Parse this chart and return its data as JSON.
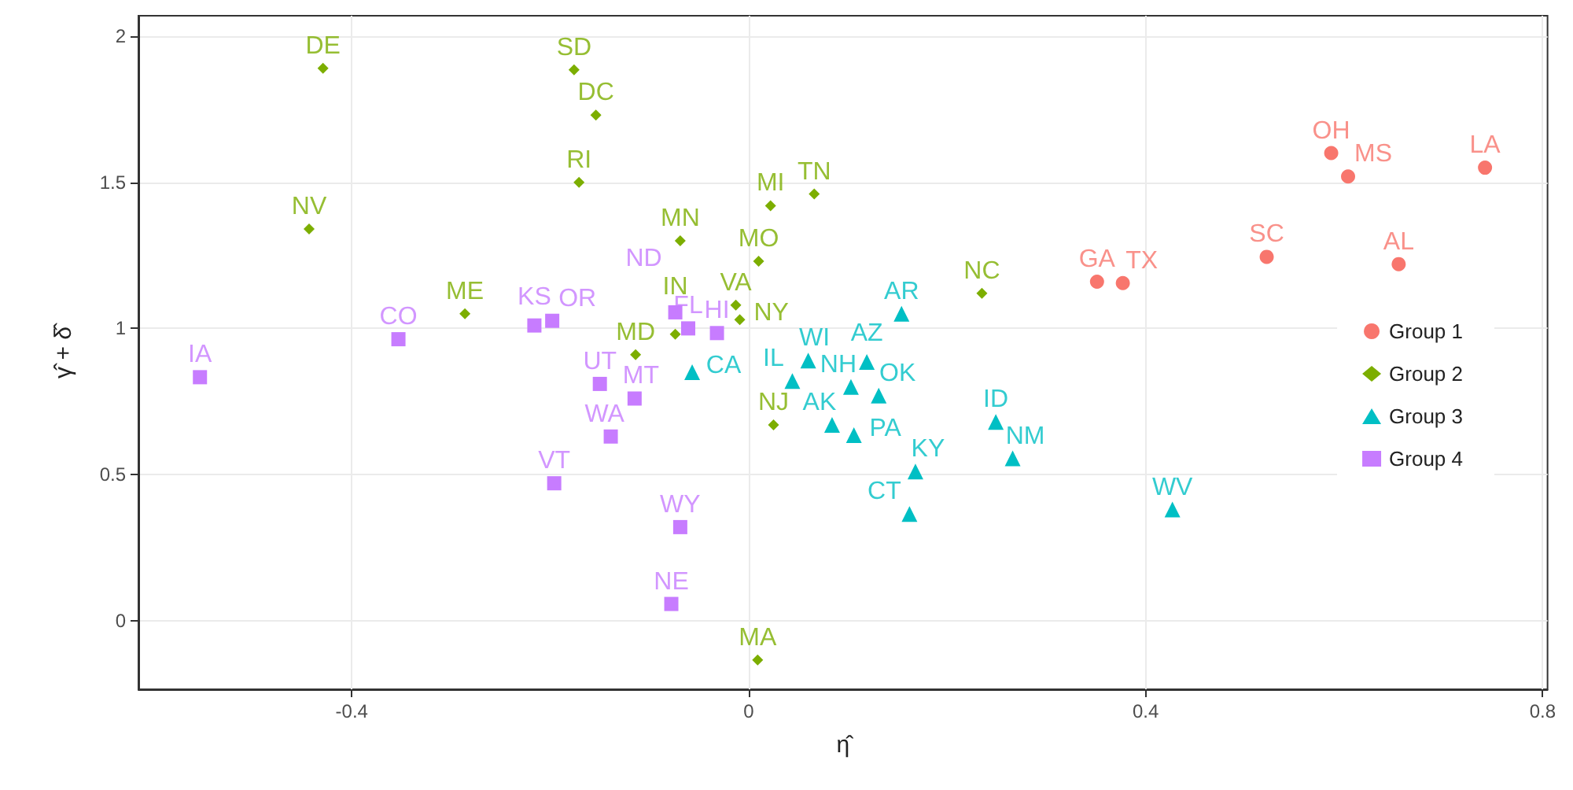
{
  "chart_data": {
    "type": "scatter",
    "xlabel": "η̂",
    "ylabel": "γ̂ + δ̂",
    "xlim": [
      -0.615,
      0.805
    ],
    "ylim": [
      -0.235,
      2.07
    ],
    "xticks": [
      -0.4,
      0,
      0.4,
      0.8
    ],
    "yticks": [
      0,
      0.5,
      1,
      1.5,
      2
    ],
    "grid": true,
    "legend": "right",
    "series": [
      {
        "name": "Group 1",
        "color": "#f8766d",
        "marker": "circle",
        "x": [
          0.587,
          0.604,
          0.742,
          0.522,
          0.655,
          0.351,
          0.377
        ],
        "values": [
          1.6,
          1.52,
          1.55,
          1.245,
          1.22,
          1.16,
          1.155
        ]
      },
      {
        "name": "Group 2",
        "color": "#7cae00",
        "marker": "diamond",
        "x": [
          -0.429,
          -0.176,
          -0.154,
          -0.171,
          -0.443,
          0.022,
          0.066,
          -0.069,
          0.01,
          -0.286,
          -0.013,
          -0.009,
          -0.074,
          -0.114,
          0.025,
          0.009,
          0.235
        ],
        "values": [
          1.89,
          1.885,
          1.73,
          1.5,
          1.34,
          1.42,
          1.46,
          1.3,
          1.23,
          1.05,
          1.08,
          1.03,
          0.98,
          0.91,
          0.67,
          -0.135,
          1.12
        ]
      },
      {
        "name": "Group 3",
        "color": "#00bfc4",
        "marker": "triangle",
        "x": [
          -0.057,
          0.06,
          0.044,
          0.103,
          0.119,
          0.131,
          0.084,
          0.106,
          0.154,
          0.168,
          0.162,
          0.249,
          0.266,
          0.427
        ],
        "values": [
          0.85,
          0.89,
          0.82,
          0.8,
          0.885,
          0.77,
          0.67,
          0.635,
          1.05,
          0.51,
          0.365,
          0.68,
          0.555,
          0.38
        ]
      },
      {
        "name": "Group 4",
        "color": "#c77cff",
        "marker": "square",
        "x": [
          -0.553,
          -0.353,
          -0.216,
          -0.198,
          -0.074,
          -0.061,
          -0.032,
          -0.15,
          -0.115,
          -0.139,
          -0.196,
          -0.069,
          -0.078
        ],
        "values": [
          0.833,
          0.963,
          1.01,
          1.026,
          1.055,
          1.0,
          0.984,
          0.81,
          0.76,
          0.63,
          0.47,
          0.32,
          0.057
        ]
      }
    ],
    "annotations": [
      {
        "text": "OH",
        "x": 0.587,
        "y": 1.6
      },
      {
        "text": "MS",
        "x": 0.604,
        "y": 1.52
      },
      {
        "text": "LA",
        "x": 0.742,
        "y": 1.55
      },
      {
        "text": "SC",
        "x": 0.522,
        "y": 1.245
      },
      {
        "text": "AL",
        "x": 0.655,
        "y": 1.22
      },
      {
        "text": "GA",
        "x": 0.351,
        "y": 1.16
      },
      {
        "text": "TX",
        "x": 0.377,
        "y": 1.155
      },
      {
        "text": "DE",
        "x": -0.429,
        "y": 1.89
      },
      {
        "text": "SD",
        "x": -0.176,
        "y": 1.885
      },
      {
        "text": "DC",
        "x": -0.154,
        "y": 1.73
      },
      {
        "text": "RI",
        "x": -0.171,
        "y": 1.5
      },
      {
        "text": "NV",
        "x": -0.443,
        "y": 1.34
      },
      {
        "text": "MI",
        "x": 0.022,
        "y": 1.42
      },
      {
        "text": "TN",
        "x": 0.066,
        "y": 1.46
      },
      {
        "text": "MN",
        "x": -0.069,
        "y": 1.3
      },
      {
        "text": "MO",
        "x": 0.01,
        "y": 1.23
      },
      {
        "text": "ME",
        "x": -0.286,
        "y": 1.05
      },
      {
        "text": "VA",
        "x": -0.013,
        "y": 1.08
      },
      {
        "text": "NY",
        "x": -0.009,
        "y": 1.03
      },
      {
        "text": "IN",
        "x": -0.074,
        "y": 0.98
      },
      {
        "text": "MD",
        "x": -0.114,
        "y": 0.91
      },
      {
        "text": "NJ",
        "x": 0.025,
        "y": 0.67
      },
      {
        "text": "MA",
        "x": 0.009,
        "y": -0.135
      },
      {
        "text": "NC",
        "x": 0.235,
        "y": 1.12
      },
      {
        "text": "CA",
        "x": -0.057,
        "y": 0.85
      },
      {
        "text": "WI",
        "x": 0.06,
        "y": 0.89
      },
      {
        "text": "IL",
        "x": 0.044,
        "y": 0.82
      },
      {
        "text": "NH",
        "x": 0.103,
        "y": 0.8
      },
      {
        "text": "AZ",
        "x": 0.119,
        "y": 0.885
      },
      {
        "text": "OK",
        "x": 0.131,
        "y": 0.77
      },
      {
        "text": "AK",
        "x": 0.084,
        "y": 0.67
      },
      {
        "text": "PA",
        "x": 0.106,
        "y": 0.635
      },
      {
        "text": "AR",
        "x": 0.154,
        "y": 1.05
      },
      {
        "text": "KY",
        "x": 0.168,
        "y": 0.51
      },
      {
        "text": "CT",
        "x": 0.162,
        "y": 0.365
      },
      {
        "text": "ID",
        "x": 0.249,
        "y": 0.68
      },
      {
        "text": "NM",
        "x": 0.266,
        "y": 0.555
      },
      {
        "text": "WV",
        "x": 0.427,
        "y": 0.38
      },
      {
        "text": "IA",
        "x": -0.553,
        "y": 0.833
      },
      {
        "text": "CO",
        "x": -0.353,
        "y": 0.963
      },
      {
        "text": "KS",
        "x": -0.216,
        "y": 1.01
      },
      {
        "text": "OR",
        "x": -0.198,
        "y": 1.026
      },
      {
        "text": "ND",
        "x": -0.074,
        "y": 1.055
      },
      {
        "text": "FL",
        "x": -0.061,
        "y": 1.0
      },
      {
        "text": "HI",
        "x": -0.032,
        "y": 0.984
      },
      {
        "text": "UT",
        "x": -0.15,
        "y": 0.81
      },
      {
        "text": "MT",
        "x": -0.115,
        "y": 0.76
      },
      {
        "text": "WA",
        "x": -0.139,
        "y": 0.63
      },
      {
        "text": "VT",
        "x": -0.196,
        "y": 0.47
      },
      {
        "text": "WY",
        "x": -0.069,
        "y": 0.32
      },
      {
        "text": "NE",
        "x": -0.078,
        "y": 0.057
      }
    ]
  }
}
